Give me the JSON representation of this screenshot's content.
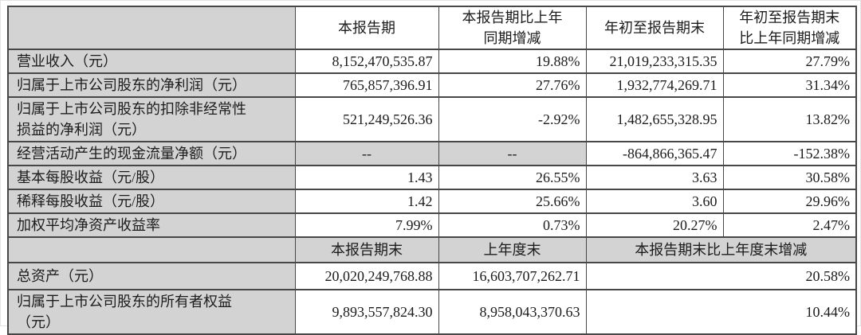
{
  "colors": {
    "cell_gray": "#d3d3d3",
    "border": "#474747",
    "text": "#1c1c1c",
    "background": "#ffffff"
  },
  "table": {
    "section_period": {
      "col_headers": [
        "本报告期",
        "本报告期比上年同期增减",
        "年初至报告期末",
        "年初至报告期末比上年同期增减"
      ],
      "rows": [
        {
          "label": "营业收入（元）",
          "values": [
            "8,152,470,535.87",
            "19.88%",
            "21,019,233,315.35",
            "27.79%"
          ]
        },
        {
          "label": "归属于上市公司股东的净利润（元）",
          "values": [
            "765,857,396.91",
            "27.76%",
            "1,932,774,269.71",
            "31.34%"
          ]
        },
        {
          "label": "归属于上市公司股东的扣除非经常性损益的净利润（元）",
          "values": [
            "521,249,526.36",
            "-2.92%",
            "1,482,655,328.95",
            "13.82%"
          ]
        },
        {
          "label": "经营活动产生的现金流量净额（元）",
          "values": [
            "--",
            "--",
            "-864,866,365.47",
            "-152.38%"
          ]
        },
        {
          "label": "基本每股收益（元/股）",
          "values": [
            "1.43",
            "26.55%",
            "3.63",
            "30.58%"
          ]
        },
        {
          "label": "稀释每股收益（元/股）",
          "values": [
            "1.42",
            "25.66%",
            "3.60",
            "29.96%"
          ]
        },
        {
          "label": "加权平均净资产收益率",
          "values": [
            "7.99%",
            "0.73%",
            "20.27%",
            "2.47%"
          ]
        }
      ]
    },
    "section_balance": {
      "col_headers": [
        "本报告期末",
        "上年度末",
        "本报告期末比上年度末增减"
      ],
      "rows": [
        {
          "label": "总资产（元）",
          "values": [
            "20,020,249,768.88",
            "16,603,707,262.71",
            "20.58%"
          ]
        },
        {
          "label": "归属于上市公司股东的所有者权益",
          "label_suffix": "（元）",
          "values": [
            "9,893,557,824.30",
            "8,958,043,370.63",
            "10.44%"
          ]
        }
      ]
    }
  }
}
